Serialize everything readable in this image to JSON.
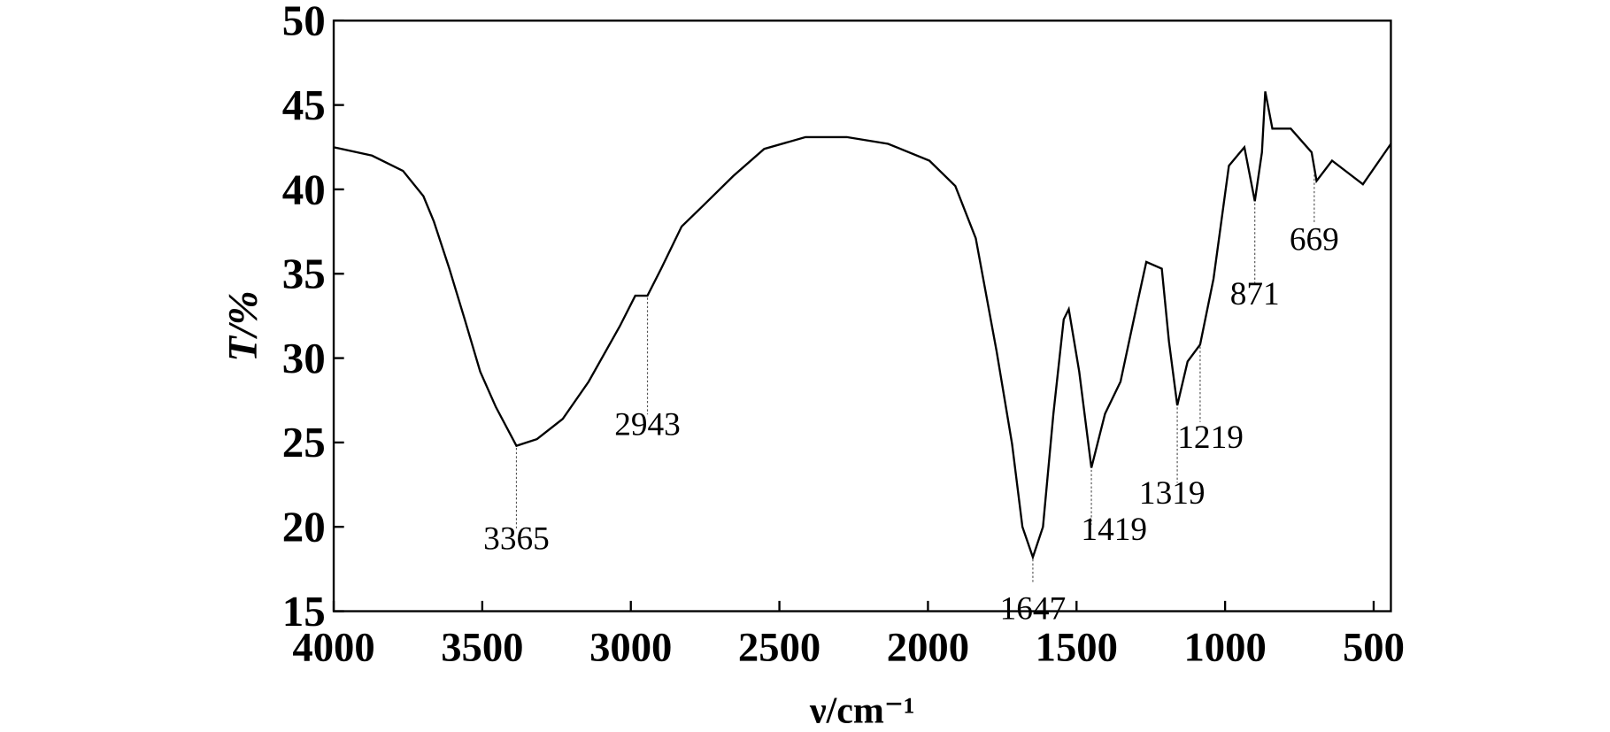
{
  "chart_data": {
    "type": "line",
    "xlabel": "ν/cm⁻¹",
    "ylabel": "T/%",
    "x": [
      4000,
      3871,
      3767,
      3698,
      3663,
      3611,
      3559,
      3507,
      3454,
      3385,
      3316,
      3229,
      3142,
      3037,
      2985,
      2944,
      2898,
      2829,
      2759,
      2655,
      2551,
      2412,
      2273,
      2134,
      1995,
      1908,
      1839,
      1769,
      1717,
      1682,
      1647,
      1613,
      1578,
      1543,
      1526,
      1491,
      1450,
      1404,
      1352,
      1300,
      1265,
      1213,
      1189,
      1161,
      1126,
      1084,
      1039,
      987,
      935,
      900,
      876,
      865,
      841,
      779,
      709,
      692,
      640,
      536,
      442
    ],
    "series": [
      {
        "color": "#000000",
        "values": [
          42.5,
          42.0,
          41.1,
          39.6,
          38.1,
          35.3,
          32.3,
          29.2,
          27.1,
          24.8,
          25.2,
          26.4,
          28.6,
          31.9,
          33.7,
          33.7,
          35.3,
          37.8,
          39.0,
          40.8,
          42.4,
          43.1,
          43.1,
          42.7,
          41.7,
          40.2,
          37.1,
          30.4,
          24.9,
          20.0,
          18.2,
          20.0,
          26.7,
          32.3,
          32.9,
          29.2,
          23.5,
          26.7,
          28.6,
          32.9,
          35.7,
          35.3,
          31.0,
          27.2,
          29.8,
          30.8,
          34.7,
          41.4,
          42.5,
          39.3,
          42.2,
          45.8,
          43.6,
          43.6,
          42.2,
          40.5,
          41.7,
          40.3,
          42.7
        ]
      }
    ],
    "xlim": [
      4000,
      442
    ],
    "ylim": [
      15,
      50
    ],
    "xticks": [
      4000,
      3500,
      3000,
      2500,
      2000,
      1500,
      1000,
      500
    ],
    "yticks": [
      15,
      20,
      25,
      30,
      35,
      40,
      45,
      50
    ],
    "annotations": [
      {
        "text": "3365",
        "x": 3385,
        "y": 24.8
      },
      {
        "text": "2943",
        "x": 2944,
        "y": 33.7
      },
      {
        "text": "1647",
        "x": 1647,
        "y": 18.2
      },
      {
        "text": "1419",
        "x": 1450,
        "y": 23.5
      },
      {
        "text": "1319",
        "x": 1161,
        "y": 27.2
      },
      {
        "text": "1219",
        "x": 1084,
        "y": 30.8
      },
      {
        "text": "871",
        "x": 900,
        "y": 39.3
      },
      {
        "text": "669",
        "x": 700,
        "y": 41.0
      }
    ]
  }
}
